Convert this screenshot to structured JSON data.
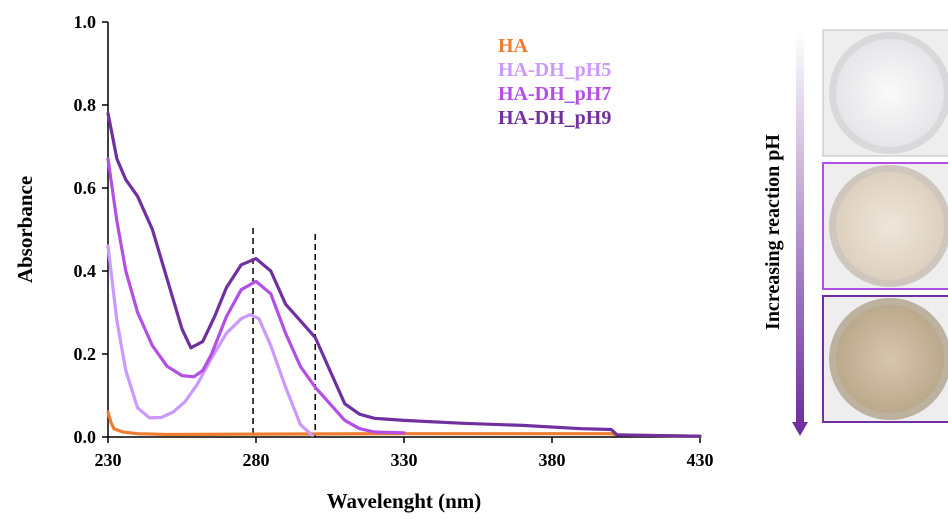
{
  "chart_data": {
    "type": "line",
    "xlabel": "Wavelenght (nm)",
    "ylabel": "Absorbance",
    "xlim": [
      230,
      430
    ],
    "ylim": [
      0,
      1.0
    ],
    "x_ticks": [
      "230",
      "280",
      "330",
      "380",
      "430"
    ],
    "y_ticks": [
      "0.0",
      "0.2",
      "0.4",
      "0.6",
      "0.8",
      "1.0"
    ],
    "grid": false,
    "legend_position": "top-right",
    "reference_lines_x": [
      279,
      300
    ],
    "series": [
      {
        "name": "HA",
        "color": "#ed7d31",
        "x": [
          230,
          231,
          232,
          235,
          240,
          250,
          280,
          330,
          380,
          400,
          402,
          430
        ],
        "y": [
          0.06,
          0.035,
          0.02,
          0.012,
          0.008,
          0.006,
          0.007,
          0.008,
          0.008,
          0.008,
          0.005,
          0.002
        ]
      },
      {
        "name": "HA-DH_pH5",
        "color": "#cc99ff",
        "x": [
          230,
          233,
          236,
          240,
          244,
          248,
          252,
          256,
          260,
          265,
          270,
          275,
          278,
          281,
          285,
          290,
          295,
          299
        ],
        "y": [
          0.46,
          0.28,
          0.16,
          0.07,
          0.046,
          0.047,
          0.06,
          0.085,
          0.125,
          0.19,
          0.25,
          0.285,
          0.295,
          0.285,
          0.22,
          0.12,
          0.03,
          0.004
        ]
      },
      {
        "name": "HA-DH_pH7",
        "color": "#b44fe5",
        "x": [
          230,
          233,
          236,
          240,
          245,
          250,
          255,
          259,
          262,
          265,
          270,
          275,
          280,
          285,
          290,
          295,
          300,
          305,
          310,
          315,
          320,
          330
        ],
        "y": [
          0.67,
          0.52,
          0.4,
          0.3,
          0.22,
          0.17,
          0.148,
          0.145,
          0.16,
          0.2,
          0.29,
          0.355,
          0.375,
          0.345,
          0.25,
          0.17,
          0.12,
          0.08,
          0.04,
          0.02,
          0.012,
          0.01
        ]
      },
      {
        "name": "HA-DH_pH9",
        "color": "#7030a0",
        "x": [
          230,
          233,
          236,
          240,
          245,
          250,
          255,
          258,
          262,
          266,
          270,
          275,
          280,
          285,
          290,
          295,
          300,
          305,
          310,
          315,
          320,
          330,
          350,
          370,
          390,
          400,
          402,
          430
        ],
        "y": [
          0.78,
          0.67,
          0.62,
          0.58,
          0.5,
          0.38,
          0.26,
          0.215,
          0.23,
          0.29,
          0.36,
          0.415,
          0.43,
          0.4,
          0.32,
          0.28,
          0.24,
          0.16,
          0.08,
          0.055,
          0.045,
          0.04,
          0.033,
          0.028,
          0.02,
          0.018,
          0.005,
          0.002
        ]
      }
    ]
  },
  "side_panel": {
    "label": "Increasing  reaction pH",
    "arrow_color_top": "#ffffff",
    "arrow_color_bottom": "#7030a0",
    "samples": [
      {
        "border_color": "#c9a6e8",
        "powder_color": "#f1f1f3",
        "rim_color": "#d9d9dc"
      },
      {
        "border_color": "#b44fe5",
        "powder_color": "#e8dccd",
        "rim_color": "#cfc7bd"
      },
      {
        "border_color": "#7030a0",
        "powder_color": "#cbb99e",
        "rim_color": "#bdb1a0"
      }
    ]
  }
}
